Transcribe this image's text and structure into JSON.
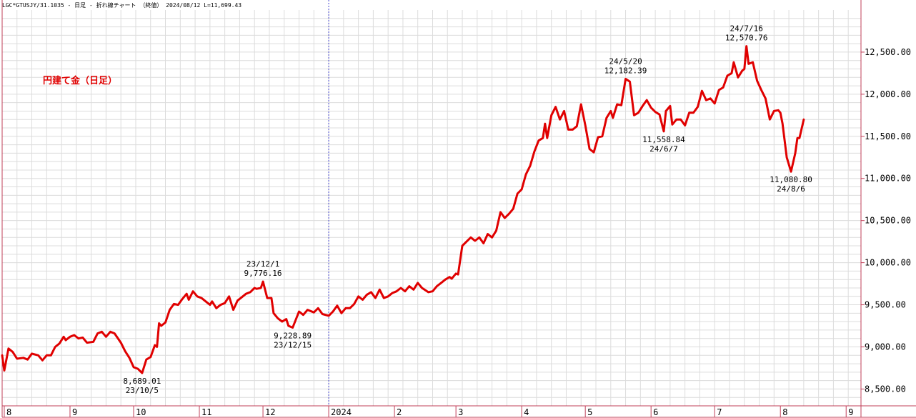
{
  "header": {
    "info": "LGC*GTUSJY/31.1035 - 日足 - 折れ線チャート （終値） 2024/08/12 L=11,699.43"
  },
  "colors": {
    "line": "#e00000",
    "grid": "#dcdcdc",
    "axis": "#c0405a",
    "year_divider": "#4a4ad0"
  },
  "chart_data": {
    "type": "line",
    "title": "円建て金（日足）",
    "xlabel": "",
    "ylabel": "",
    "ylim": [
      8300,
      13000
    ],
    "xlim": [
      "2023-07-31",
      "2024-09-08"
    ],
    "grid": true,
    "y_axis_position": "right",
    "yticks": [
      {
        "value": 8500,
        "label": "8,500.00"
      },
      {
        "value": 9000,
        "label": "9,000.00"
      },
      {
        "value": 9500,
        "label": "9,500.00"
      },
      {
        "value": 10000,
        "label": "10,000.00"
      },
      {
        "value": 10500,
        "label": "10,500.00"
      },
      {
        "value": 11000,
        "label": "11,000.00"
      },
      {
        "value": 11500,
        "label": "11,500.00"
      },
      {
        "value": 12000,
        "label": "12,000.00"
      },
      {
        "value": 12500,
        "label": "12,500.00"
      }
    ],
    "xticks": [
      {
        "date": "2023-08-01",
        "label": "8"
      },
      {
        "date": "2023-09-01",
        "label": "9"
      },
      {
        "date": "2023-10-01",
        "label": "10"
      },
      {
        "date": "2023-11-01",
        "label": "11"
      },
      {
        "date": "2023-12-01",
        "label": "12"
      },
      {
        "date": "2024-01-01",
        "label": "2024"
      },
      {
        "date": "2024-02-01",
        "label": "2"
      },
      {
        "date": "2024-03-01",
        "label": "3"
      },
      {
        "date": "2024-04-01",
        "label": "4"
      },
      {
        "date": "2024-05-01",
        "label": "5"
      },
      {
        "date": "2024-06-01",
        "label": "6"
      },
      {
        "date": "2024-07-01",
        "label": "7"
      },
      {
        "date": "2024-08-01",
        "label": "8"
      },
      {
        "date": "2024-09-01",
        "label": "9"
      }
    ],
    "year_divider": "2024-01-01",
    "series": [
      {
        "color": "#e00000",
        "points": [
          [
            "2023-07-31",
            8900
          ],
          [
            "2023-08-01",
            8720
          ],
          [
            "2023-08-03",
            8980
          ],
          [
            "2023-08-05",
            8940
          ],
          [
            "2023-08-07",
            8860
          ],
          [
            "2023-08-10",
            8870
          ],
          [
            "2023-08-12",
            8850
          ],
          [
            "2023-08-14",
            8920
          ],
          [
            "2023-08-17",
            8900
          ],
          [
            "2023-08-19",
            8840
          ],
          [
            "2023-08-21",
            8900
          ],
          [
            "2023-08-23",
            8900
          ],
          [
            "2023-08-25",
            9000
          ],
          [
            "2023-08-27",
            9040
          ],
          [
            "2023-08-29",
            9120
          ],
          [
            "2023-08-30",
            9080
          ],
          [
            "2023-09-01",
            9120
          ],
          [
            "2023-09-03",
            9140
          ],
          [
            "2023-09-05",
            9100
          ],
          [
            "2023-09-07",
            9110
          ],
          [
            "2023-09-09",
            9050
          ],
          [
            "2023-09-12",
            9060
          ],
          [
            "2023-09-14",
            9160
          ],
          [
            "2023-09-16",
            9180
          ],
          [
            "2023-09-18",
            9120
          ],
          [
            "2023-09-20",
            9180
          ],
          [
            "2023-09-22",
            9160
          ],
          [
            "2023-09-25",
            9050
          ],
          [
            "2023-09-27",
            8950
          ],
          [
            "2023-09-29",
            8870
          ],
          [
            "2023-10-01",
            8760
          ],
          [
            "2023-10-03",
            8740
          ],
          [
            "2023-10-05",
            8689
          ],
          [
            "2023-10-07",
            8850
          ],
          [
            "2023-10-09",
            8880
          ],
          [
            "2023-10-11",
            9020
          ],
          [
            "2023-10-12",
            9000
          ],
          [
            "2023-10-13",
            9280
          ],
          [
            "2023-10-14",
            9250
          ],
          [
            "2023-10-16",
            9290
          ],
          [
            "2023-10-18",
            9440
          ],
          [
            "2023-10-20",
            9510
          ],
          [
            "2023-10-22",
            9500
          ],
          [
            "2023-10-24",
            9570
          ],
          [
            "2023-10-26",
            9630
          ],
          [
            "2023-10-27",
            9560
          ],
          [
            "2023-10-29",
            9660
          ],
          [
            "2023-10-31",
            9600
          ],
          [
            "2023-11-02",
            9580
          ],
          [
            "2023-11-04",
            9540
          ],
          [
            "2023-11-06",
            9500
          ],
          [
            "2023-11-07",
            9540
          ],
          [
            "2023-11-09",
            9460
          ],
          [
            "2023-11-11",
            9500
          ],
          [
            "2023-11-13",
            9520
          ],
          [
            "2023-11-15",
            9600
          ],
          [
            "2023-11-17",
            9440
          ],
          [
            "2023-11-19",
            9550
          ],
          [
            "2023-11-21",
            9590
          ],
          [
            "2023-11-23",
            9630
          ],
          [
            "2023-11-25",
            9650
          ],
          [
            "2023-11-27",
            9700
          ],
          [
            "2023-11-28",
            9690
          ],
          [
            "2023-11-30",
            9700
          ],
          [
            "2023-12-01",
            9776.16
          ],
          [
            "2023-12-03",
            9580
          ],
          [
            "2023-12-05",
            9580
          ],
          [
            "2023-12-06",
            9400
          ],
          [
            "2023-12-08",
            9340
          ],
          [
            "2023-12-10",
            9300
          ],
          [
            "2023-12-12",
            9330
          ],
          [
            "2023-12-13",
            9250
          ],
          [
            "2023-12-15",
            9228.89
          ],
          [
            "2023-12-18",
            9420
          ],
          [
            "2023-12-20",
            9380
          ],
          [
            "2023-12-22",
            9440
          ],
          [
            "2023-12-25",
            9410
          ],
          [
            "2023-12-27",
            9460
          ],
          [
            "2023-12-29",
            9390
          ],
          [
            "2024-01-01",
            9370
          ],
          [
            "2024-01-03",
            9420
          ],
          [
            "2024-01-05",
            9490
          ],
          [
            "2024-01-07",
            9400
          ],
          [
            "2024-01-09",
            9460
          ],
          [
            "2024-01-11",
            9460
          ],
          [
            "2024-01-13",
            9510
          ],
          [
            "2024-01-15",
            9600
          ],
          [
            "2024-01-17",
            9560
          ],
          [
            "2024-01-19",
            9620
          ],
          [
            "2024-01-21",
            9650
          ],
          [
            "2024-01-23",
            9580
          ],
          [
            "2024-01-25",
            9680
          ],
          [
            "2024-01-27",
            9580
          ],
          [
            "2024-01-29",
            9600
          ],
          [
            "2024-01-31",
            9640
          ],
          [
            "2024-02-02",
            9660
          ],
          [
            "2024-02-04",
            9700
          ],
          [
            "2024-02-06",
            9660
          ],
          [
            "2024-02-08",
            9720
          ],
          [
            "2024-02-10",
            9680
          ],
          [
            "2024-02-12",
            9760
          ],
          [
            "2024-02-14",
            9700
          ],
          [
            "2024-02-17",
            9650
          ],
          [
            "2024-02-19",
            9660
          ],
          [
            "2024-02-21",
            9720
          ],
          [
            "2024-02-23",
            9760
          ],
          [
            "2024-02-25",
            9800
          ],
          [
            "2024-02-27",
            9830
          ],
          [
            "2024-02-28",
            9810
          ],
          [
            "2024-03-01",
            9870
          ],
          [
            "2024-03-02",
            9860
          ],
          [
            "2024-03-04",
            10200
          ],
          [
            "2024-03-06",
            10250
          ],
          [
            "2024-03-08",
            10300
          ],
          [
            "2024-03-10",
            10260
          ],
          [
            "2024-03-12",
            10300
          ],
          [
            "2024-03-14",
            10230
          ],
          [
            "2024-03-16",
            10340
          ],
          [
            "2024-03-18",
            10300
          ],
          [
            "2024-03-20",
            10380
          ],
          [
            "2024-03-22",
            10600
          ],
          [
            "2024-03-24",
            10530
          ],
          [
            "2024-03-26",
            10580
          ],
          [
            "2024-03-28",
            10640
          ],
          [
            "2024-03-30",
            10820
          ],
          [
            "2024-04-01",
            10870
          ],
          [
            "2024-04-03",
            11050
          ],
          [
            "2024-04-05",
            11150
          ],
          [
            "2024-04-07",
            11320
          ],
          [
            "2024-04-09",
            11450
          ],
          [
            "2024-04-11",
            11480
          ],
          [
            "2024-04-12",
            11650
          ],
          [
            "2024-04-13",
            11480
          ],
          [
            "2024-04-15",
            11750
          ],
          [
            "2024-04-17",
            11850
          ],
          [
            "2024-04-19",
            11700
          ],
          [
            "2024-04-21",
            11800
          ],
          [
            "2024-04-23",
            11580
          ],
          [
            "2024-04-25",
            11580
          ],
          [
            "2024-04-27",
            11620
          ],
          [
            "2024-04-29",
            11880
          ],
          [
            "2024-05-01",
            11630
          ],
          [
            "2024-05-03",
            11350
          ],
          [
            "2024-05-05",
            11310
          ],
          [
            "2024-05-07",
            11490
          ],
          [
            "2024-05-09",
            11500
          ],
          [
            "2024-05-11",
            11720
          ],
          [
            "2024-05-13",
            11800
          ],
          [
            "2024-05-14",
            11720
          ],
          [
            "2024-05-16",
            11880
          ],
          [
            "2024-05-18",
            11870
          ],
          [
            "2024-05-20",
            12182.39
          ],
          [
            "2024-05-22",
            12150
          ],
          [
            "2024-05-24",
            11750
          ],
          [
            "2024-05-26",
            11780
          ],
          [
            "2024-05-28",
            11860
          ],
          [
            "2024-05-30",
            11930
          ],
          [
            "2024-06-01",
            11840
          ],
          [
            "2024-06-03",
            11790
          ],
          [
            "2024-06-05",
            11760
          ],
          [
            "2024-06-07",
            11558.84
          ],
          [
            "2024-06-08",
            11800
          ],
          [
            "2024-06-10",
            11860
          ],
          [
            "2024-06-11",
            11640
          ],
          [
            "2024-06-13",
            11700
          ],
          [
            "2024-06-15",
            11700
          ],
          [
            "2024-06-17",
            11630
          ],
          [
            "2024-06-19",
            11780
          ],
          [
            "2024-06-21",
            11780
          ],
          [
            "2024-06-23",
            11850
          ],
          [
            "2024-06-25",
            12040
          ],
          [
            "2024-06-27",
            11930
          ],
          [
            "2024-06-29",
            11950
          ],
          [
            "2024-07-01",
            11890
          ],
          [
            "2024-07-03",
            12050
          ],
          [
            "2024-07-05",
            12080
          ],
          [
            "2024-07-07",
            12220
          ],
          [
            "2024-07-09",
            12250
          ],
          [
            "2024-07-10",
            12380
          ],
          [
            "2024-07-12",
            12200
          ],
          [
            "2024-07-14",
            12280
          ],
          [
            "2024-07-15",
            12300
          ],
          [
            "2024-07-16",
            12570.76
          ],
          [
            "2024-07-17",
            12360
          ],
          [
            "2024-07-19",
            12380
          ],
          [
            "2024-07-21",
            12160
          ],
          [
            "2024-07-23",
            12050
          ],
          [
            "2024-07-25",
            11950
          ],
          [
            "2024-07-27",
            11700
          ],
          [
            "2024-07-29",
            11800
          ],
          [
            "2024-07-31",
            11810
          ],
          [
            "2024-08-01",
            11780
          ],
          [
            "2024-08-02",
            11650
          ],
          [
            "2024-08-04",
            11250
          ],
          [
            "2024-08-06",
            11080.8
          ],
          [
            "2024-08-08",
            11300
          ],
          [
            "2024-08-09",
            11480
          ],
          [
            "2024-08-10",
            11480
          ],
          [
            "2024-08-12",
            11699.43
          ]
        ]
      }
    ],
    "annotations": [
      {
        "date": "2023-10-05",
        "value": 8689.01,
        "lines": [
          "8,689.01",
          "23/10/5"
        ],
        "position": "below"
      },
      {
        "date": "2023-12-01",
        "value": 9776.16,
        "lines": [
          "23/12/1",
          "9,776.16"
        ],
        "position": "above"
      },
      {
        "date": "2023-12-15",
        "value": 9228.89,
        "lines": [
          "9,228.89",
          "23/12/15"
        ],
        "position": "below"
      },
      {
        "date": "2024-05-20",
        "value": 12182.39,
        "lines": [
          "24/5/20",
          "12,182.39"
        ],
        "position": "above"
      },
      {
        "date": "2024-06-07",
        "value": 11558.84,
        "lines": [
          "11,558.84",
          "24/6/7"
        ],
        "position": "below"
      },
      {
        "date": "2024-07-16",
        "value": 12570.76,
        "lines": [
          "24/7/16",
          "12,570.76"
        ],
        "position": "above"
      },
      {
        "date": "2024-08-06",
        "value": 11080.8,
        "lines": [
          "11,080.80",
          "24/8/6"
        ],
        "position": "below"
      }
    ]
  }
}
